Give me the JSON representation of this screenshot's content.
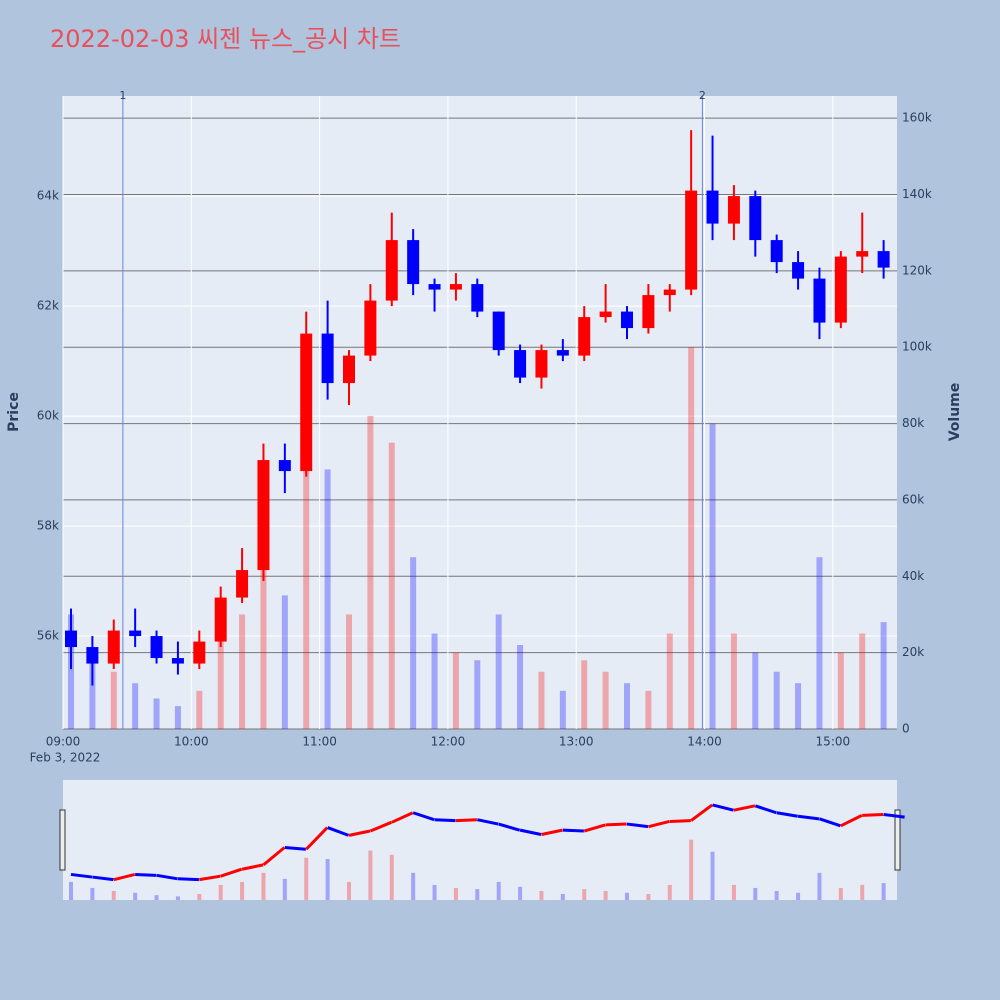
{
  "chart_data": {
    "type": "candlestick",
    "title": "2022-02-03 씨젠 뉴스_공시 차트",
    "y_title": "Price",
    "y2_title": "Volume",
    "x_date_label": "Feb 3, 2022",
    "increasing_color": "#ff0000",
    "decreasing_color": "#0000ff",
    "grid": true,
    "rangeslider": true,
    "x": [
      "2022-02-03 09:00",
      "2022-02-03 09:10",
      "2022-02-03 09:20",
      "2022-02-03 09:30",
      "2022-02-03 09:40",
      "2022-02-03 09:50",
      "2022-02-03 10:00",
      "2022-02-03 10:10",
      "2022-02-03 10:20",
      "2022-02-03 10:30",
      "2022-02-03 10:40",
      "2022-02-03 10:50",
      "2022-02-03 11:00",
      "2022-02-03 11:10",
      "2022-02-03 11:20",
      "2022-02-03 11:30",
      "2022-02-03 11:40",
      "2022-02-03 11:50",
      "2022-02-03 12:00",
      "2022-02-03 12:10",
      "2022-02-03 12:20",
      "2022-02-03 12:30",
      "2022-02-03 12:40",
      "2022-02-03 12:50",
      "2022-02-03 13:00",
      "2022-02-03 13:10",
      "2022-02-03 13:20",
      "2022-02-03 13:30",
      "2022-02-03 13:40",
      "2022-02-03 13:50",
      "2022-02-03 14:00",
      "2022-02-03 14:10",
      "2022-02-03 14:20",
      "2022-02-03 14:30",
      "2022-02-03 14:40",
      "2022-02-03 14:50",
      "2022-02-03 15:00",
      "2022-02-03 15:10",
      "2022-02-03 15:20"
    ],
    "open": [
      56100,
      55800,
      55500,
      56100,
      56000,
      55600,
      55500,
      55900,
      56700,
      57200,
      59200,
      59000,
      61500,
      60600,
      61100,
      62100,
      63200,
      62400,
      62300,
      62400,
      61900,
      61200,
      60700,
      61200,
      61100,
      61800,
      61900,
      61600,
      62200,
      62300,
      64100,
      63500,
      64000,
      63200,
      62800,
      62500,
      61700,
      62900,
      63000
    ],
    "high": [
      56500,
      56000,
      56300,
      56500,
      56100,
      55900,
      56100,
      56900,
      57600,
      59500,
      59500,
      61900,
      62100,
      61200,
      62400,
      63700,
      63400,
      62500,
      62600,
      62500,
      61900,
      61300,
      61300,
      61400,
      62000,
      62400,
      62000,
      62400,
      62400,
      65200,
      65100,
      64200,
      64100,
      63300,
      63000,
      62700,
      63000,
      63700,
      63200
    ],
    "low": [
      55400,
      55100,
      55400,
      55800,
      55500,
      55300,
      55400,
      55800,
      56600,
      57000,
      58600,
      58900,
      60300,
      60200,
      61000,
      62000,
      62200,
      61900,
      62100,
      61800,
      61100,
      60600,
      60500,
      61000,
      61000,
      61700,
      61400,
      61500,
      61900,
      62200,
      63200,
      63200,
      62900,
      62600,
      62300,
      61400,
      61600,
      62600,
      62500
    ],
    "close": [
      55800,
      55500,
      56100,
      56000,
      55600,
      55500,
      55900,
      56700,
      57200,
      59200,
      59000,
      61500,
      60600,
      61100,
      62100,
      63200,
      62400,
      62300,
      62400,
      61900,
      61200,
      60700,
      61200,
      61100,
      61800,
      61900,
      61600,
      62200,
      62300,
      64100,
      63500,
      64000,
      63200,
      62800,
      62500,
      61700,
      62900,
      63000,
      62700
    ],
    "volume": [
      30000,
      20000,
      15000,
      12000,
      8000,
      6000,
      10000,
      25000,
      30000,
      45000,
      35000,
      70000,
      68000,
      30000,
      82000,
      75000,
      45000,
      25000,
      20000,
      18000,
      30000,
      22000,
      15000,
      10000,
      18000,
      15000,
      12000,
      10000,
      25000,
      100000,
      80000,
      25000,
      20000,
      15000,
      12000,
      45000,
      20000,
      25000,
      28000
    ],
    "xlim": [
      "2022-02-03 09:00",
      "2022-02-03 15:30"
    ],
    "xticks": [
      {
        "value": "2022-02-03 09:00",
        "label": "09:00"
      },
      {
        "value": "2022-02-03 10:00",
        "label": "10:00"
      },
      {
        "value": "2022-02-03 11:00",
        "label": "11:00"
      },
      {
        "value": "2022-02-03 12:00",
        "label": "12:00"
      },
      {
        "value": "2022-02-03 13:00",
        "label": "13:00"
      },
      {
        "value": "2022-02-03 14:00",
        "label": "14:00"
      },
      {
        "value": "2022-02-03 15:00",
        "label": "15:00"
      }
    ],
    "ylim": [
      54310,
      65820
    ],
    "yticks": [
      {
        "value": 56000,
        "label": "56k"
      },
      {
        "value": 58000,
        "label": "58k"
      },
      {
        "value": 60000,
        "label": "60k"
      },
      {
        "value": 62000,
        "label": "62k"
      },
      {
        "value": 64000,
        "label": "64k"
      }
    ],
    "y2lim": [
      0,
      165800
    ],
    "y2ticks": [
      0,
      {
        "value": 20000,
        "label": "20k"
      },
      {
        "value": 40000,
        "label": "40k"
      },
      {
        "value": 60000,
        "label": "60k"
      },
      {
        "value": 80000,
        "label": "80k"
      },
      {
        "value": 100000,
        "label": "100k"
      },
      {
        "value": 120000,
        "label": "120k"
      },
      {
        "value": 140000,
        "label": "140k"
      },
      {
        "value": 160000,
        "label": "160k"
      }
    ],
    "annotations": [
      {
        "x": "2022-02-03 09:28",
        "text": "1"
      },
      {
        "x": "2022-02-03 13:59",
        "text": "2"
      }
    ]
  }
}
